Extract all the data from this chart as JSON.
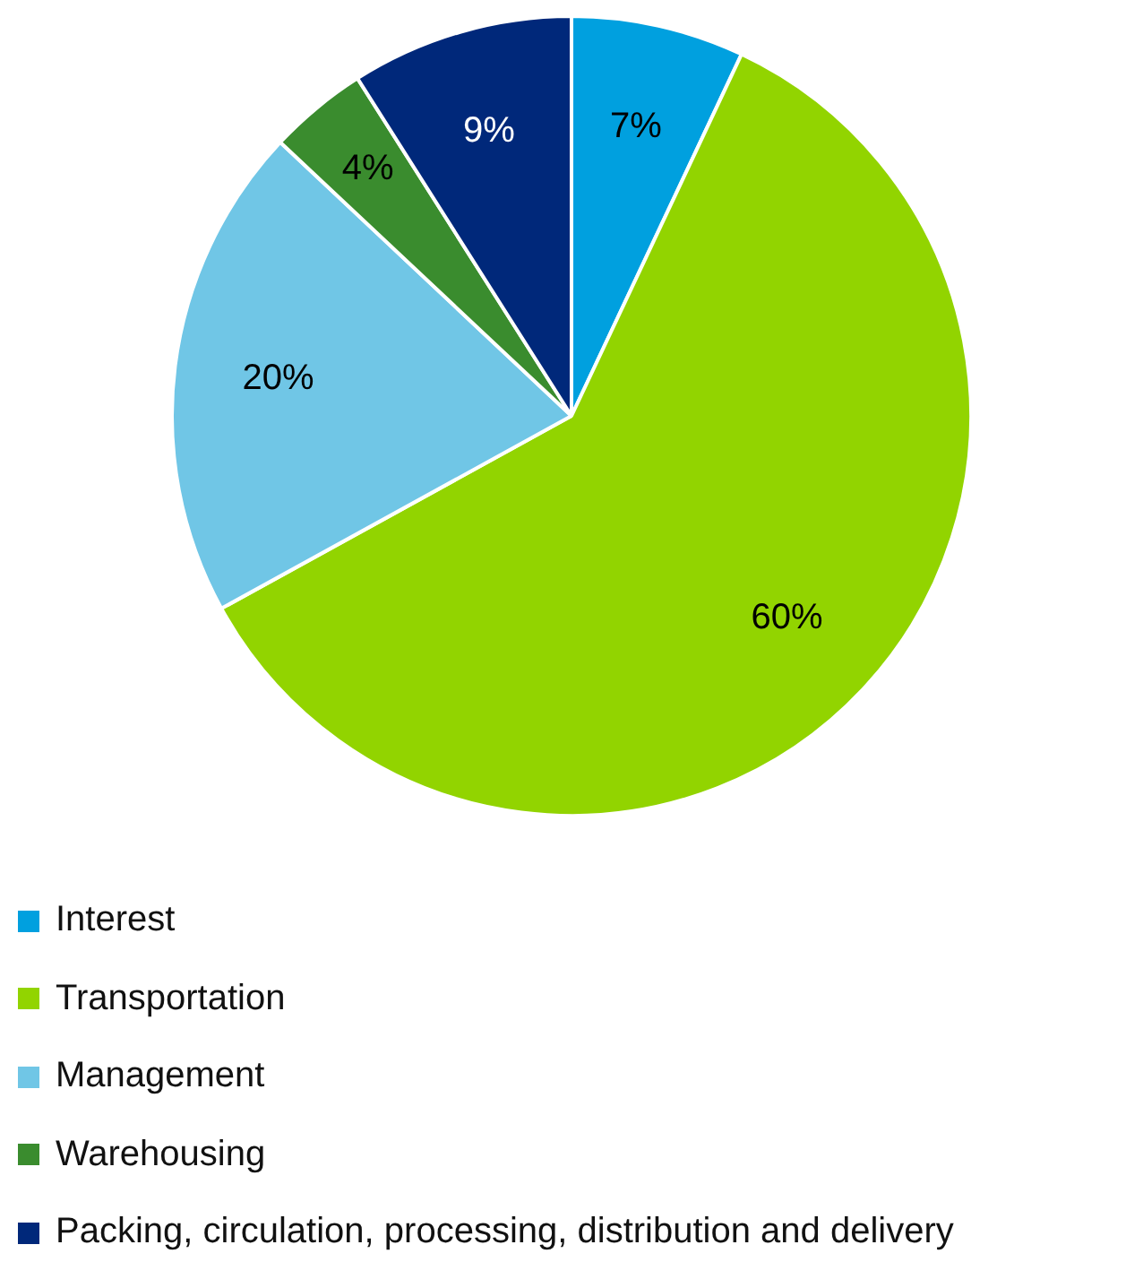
{
  "chart_data": {
    "type": "pie",
    "categories": [
      "Interest",
      "Transportation",
      "Management",
      "Warehousing",
      "Packing, circulation, processing, distribution and delivery"
    ],
    "values": [
      7,
      60,
      20,
      4,
      9
    ],
    "colors": [
      "#00a0df",
      "#92d400",
      "#70c6e6",
      "#3a8c2e",
      "#00287a"
    ],
    "value_labels": [
      "7%",
      "60%",
      "20%",
      "4%",
      "9%"
    ],
    "legend": "bottom"
  }
}
